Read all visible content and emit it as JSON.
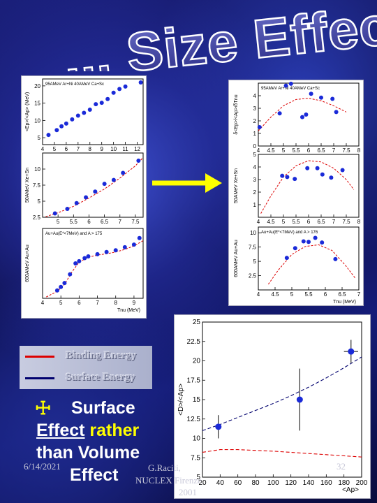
{
  "title": "... Size Effect",
  "arrow_color": "#ffff00",
  "legend": {
    "items": [
      {
        "label": "Binding Energy",
        "color": "#dd0000"
      },
      {
        "label": "Surface Energy",
        "color": "#00006e"
      }
    ]
  },
  "bullet": {
    "symbol": "☩",
    "line1": "Surface",
    "word_effect": "Effect",
    "word_rather": "rather",
    "word_than_volume": "than Volume",
    "word_effect2": "Effect"
  },
  "footer": {
    "date": "6/14/2021",
    "author": "G.Raciti,",
    "conference": "NUCLEX Firenze",
    "year": "2001",
    "page": "32"
  },
  "chart_data": [
    {
      "type": "scatter",
      "panel": "left-top",
      "title": "",
      "inset_label": "95AMeV Ar+Ni 40AMeV Ca+Sc",
      "ylabel": "<Ep>/<Ap> (MeV)",
      "xlim": [
        4,
        12.5
      ],
      "ylim": [
        3,
        22
      ],
      "xticks": [
        4,
        5,
        6,
        7,
        8,
        9,
        10,
        11,
        12
      ],
      "yticks": [
        5,
        10,
        15,
        20
      ],
      "points": {
        "x": [
          4.5,
          5.2,
          5.6,
          6.0,
          6.5,
          7.0,
          7.5,
          8.0,
          8.5,
          9.0,
          9.5,
          10.0,
          10.5,
          11.0,
          12.3
        ],
        "y": [
          5.8,
          7.2,
          8.3,
          9.1,
          10.3,
          11.4,
          12.2,
          13.1,
          14.7,
          15.1,
          16.2,
          18.0,
          19.1,
          19.8,
          21.0
        ]
      }
    },
    {
      "type": "scatter",
      "panel": "left-middle",
      "title": "",
      "ylabel": "50AMeV Xe+Sn",
      "xlim": [
        4.5,
        7.75
      ],
      "ylim": [
        2.5,
        12.5
      ],
      "xticks": [
        5,
        5.5,
        6,
        6.5,
        7,
        7.5
      ],
      "yticks": [
        2.5,
        5,
        7.5,
        10
      ],
      "points": {
        "x": [
          4.9,
          5.3,
          5.6,
          5.9,
          6.2,
          6.5,
          6.8,
          7.1,
          7.6
        ],
        "y": [
          3.1,
          3.8,
          4.7,
          5.6,
          6.5,
          7.7,
          8.3,
          9.4,
          11.3
        ]
      },
      "fit": {
        "x": [
          4.6,
          5.0,
          5.5,
          6.0,
          6.5,
          7.0,
          7.5,
          7.75
        ],
        "y": [
          2.6,
          3.2,
          4.2,
          5.5,
          6.9,
          8.6,
          10.5,
          11.8
        ]
      }
    },
    {
      "type": "scatter",
      "panel": "left-bottom",
      "title": "",
      "inset_label": "Au+Au(E*<7MeV) and A > 175",
      "ylabel": "600AMeV Au+Au",
      "xlabel": "Tnu (MeV)",
      "xlim": [
        4,
        9.5
      ],
      "ylim": [
        4,
        20
      ],
      "xticks": [
        4,
        5,
        6,
        7,
        8,
        9
      ],
      "points": {
        "x": [
          4.8,
          5.0,
          5.2,
          5.5,
          5.8,
          6.0,
          6.3,
          6.5,
          7.0,
          7.5,
          8.0,
          8.5,
          9.0,
          9.3
        ],
        "y": [
          5.8,
          6.6,
          7.5,
          9.5,
          12.0,
          12.5,
          13.2,
          13.6,
          14.1,
          14.6,
          15.0,
          15.7,
          16.3,
          17.8
        ]
      },
      "fit": {
        "x": [
          4.2,
          4.8,
          5.2,
          5.6,
          6.0,
          6.5,
          7.0,
          7.5,
          8.0,
          8.5,
          9.0,
          9.5
        ],
        "y": [
          4.3,
          5.6,
          7.2,
          10.0,
          12.3,
          13.4,
          13.9,
          14.2,
          14.6,
          15.2,
          16.0,
          17.2
        ]
      }
    },
    {
      "type": "scatter",
      "panel": "right-top",
      "title": "",
      "inset_label": "95AMeV Ar+Ni 40AMeV Ca+Sc",
      "ylabel": "δ<Ep>/<Ap>/δTnu",
      "xlim": [
        4,
        8
      ],
      "ylim": [
        0,
        5
      ],
      "xticks": [
        4,
        4.5,
        5,
        5.5,
        6,
        6.5,
        7,
        7.5,
        8
      ],
      "yticks": [
        0,
        1,
        2,
        3,
        4
      ],
      "points": {
        "x": [
          4.05,
          4.85,
          5.1,
          5.3,
          5.75,
          5.9,
          6.1,
          6.5,
          6.95,
          7.1
        ],
        "y": [
          1.5,
          2.6,
          4.8,
          4.95,
          2.3,
          2.5,
          4.15,
          3.85,
          3.75,
          2.7
        ]
      },
      "fit": {
        "x": [
          4.0,
          4.5,
          5.0,
          5.5,
          6.0,
          6.5,
          7.0,
          7.5
        ],
        "y": [
          1.2,
          2.3,
          3.2,
          3.7,
          3.8,
          3.6,
          3.2,
          2.7
        ]
      }
    },
    {
      "type": "scatter",
      "panel": "right-middle",
      "title": "",
      "ylabel": "50AMeV Xe+Sn",
      "xlim": [
        4,
        8
      ],
      "ylim": [
        0,
        5
      ],
      "xticks": [
        4,
        4.5,
        5,
        5.5,
        6,
        6.5,
        7,
        7.5,
        8
      ],
      "yticks": [
        1,
        2,
        3,
        4,
        5
      ],
      "points": {
        "x": [
          4.95,
          5.15,
          5.45,
          5.95,
          6.35,
          6.55,
          6.9,
          7.35
        ],
        "y": [
          3.3,
          3.2,
          3.05,
          3.9,
          3.9,
          3.4,
          3.15,
          3.75
        ]
      },
      "fit": {
        "x": [
          4.1,
          4.5,
          5.0,
          5.5,
          6.0,
          6.5,
          7.0,
          7.5,
          7.8
        ],
        "y": [
          0.3,
          1.7,
          3.2,
          4.1,
          4.5,
          4.4,
          3.9,
          3.0,
          2.2
        ]
      }
    },
    {
      "type": "scatter",
      "panel": "right-bottom",
      "title": "",
      "inset_label": "Au+Au(E*<7MeV) and A > 176",
      "ylabel": "600AMeV Au+Au",
      "xlabel": "Tnu (MeV)",
      "xlim": [
        4,
        7
      ],
      "ylim": [
        0,
        11
      ],
      "xticks": [
        4,
        4.5,
        5,
        5.5,
        6,
        6.5,
        7
      ],
      "yticks": [
        2.5,
        5,
        7.5,
        10
      ],
      "points": {
        "x": [
          4.85,
          5.1,
          5.35,
          5.5,
          5.7,
          5.9,
          6.3
        ],
        "y": [
          5.6,
          7.3,
          8.5,
          8.4,
          9.1,
          8.3,
          5.4
        ]
      },
      "fit": {
        "x": [
          4.3,
          4.6,
          5.0,
          5.4,
          5.8,
          6.2,
          6.6,
          6.9
        ],
        "y": [
          1.0,
          3.5,
          6.2,
          7.6,
          7.9,
          6.9,
          4.3,
          2.0
        ]
      }
    },
    {
      "type": "scatter",
      "panel": "bottom",
      "title": "",
      "ylabel": "<D>/<Ap>",
      "xlabel": "<Ap>",
      "xlim": [
        20,
        200
      ],
      "ylim": [
        5,
        25
      ],
      "xticks": [
        20,
        40,
        60,
        80,
        100,
        120,
        140,
        160,
        180,
        200
      ],
      "yticks": [
        5,
        7.5,
        10,
        12.5,
        15,
        17.5,
        20,
        22.5,
        25
      ],
      "points": {
        "x": [
          38,
          130,
          188
        ],
        "y": [
          11.5,
          15.0,
          21.2
        ],
        "xerr": [
          3,
          3,
          8
        ],
        "yerr": [
          1.5,
          4.0,
          1.5
        ]
      },
      "series": [
        {
          "name": "Surface Energy",
          "x": [
            20,
            40,
            60,
            80,
            100,
            120,
            140,
            160,
            180,
            200
          ],
          "y": [
            11.0,
            11.8,
            12.7,
            13.6,
            14.5,
            15.5,
            16.6,
            17.8,
            19.1,
            20.5
          ]
        },
        {
          "name": "Binding Energy",
          "x": [
            20,
            40,
            60,
            80,
            100,
            120,
            140,
            160,
            180,
            200
          ],
          "y": [
            8.2,
            8.55,
            8.55,
            8.45,
            8.35,
            8.2,
            8.05,
            7.9,
            7.75,
            7.6
          ]
        }
      ]
    }
  ]
}
